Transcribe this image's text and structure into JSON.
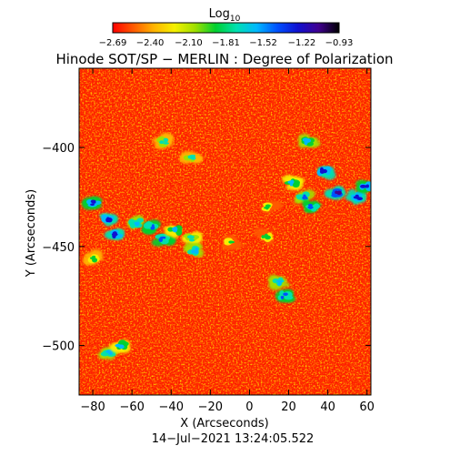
{
  "chart_data": {
    "type": "heatmap",
    "title": "Hinode SOT/SP − MERLIN : Degree of Polarization",
    "subtitle": "14−Jul−2021 13:24:05.522",
    "xlabel": "X (Arcseconds)",
    "ylabel": "Y (Arcseconds)",
    "xlim": [
      -87,
      62
    ],
    "ylim": [
      -525,
      -360
    ],
    "xticks": [
      -80,
      -60,
      -40,
      -20,
      0,
      20,
      40,
      60
    ],
    "yticks": [
      -400,
      -450,
      -500
    ],
    "xtick_labels": [
      "−80",
      "−60",
      "−40",
      "−20",
      "0",
      "20",
      "40",
      "60"
    ],
    "ytick_labels": [
      "−400",
      "−450",
      "−500"
    ],
    "colorbar": {
      "label": "Log",
      "label_subscript": "10",
      "min": -2.69,
      "max": -0.93,
      "tick_values": [
        -2.69,
        -2.4,
        -2.1,
        -1.81,
        -1.52,
        -1.22,
        -0.93
      ],
      "tick_labels": [
        "−2.69",
        "−2.40",
        "−2.10",
        "−1.81",
        "−1.52",
        "−1.22",
        "−0.93"
      ],
      "colors": [
        "#ff0000",
        "#ff5a00",
        "#ffb400",
        "#f5f000",
        "#a0e000",
        "#00d030",
        "#00e0b0",
        "#00b8ff",
        "#0050ff",
        "#1010d0",
        "#400090",
        "#000000"
      ]
    },
    "background_color": "#ff3000",
    "field_description": "predominantly low polarization (red/orange) with scattered clusters of high polarization",
    "high_polarization_regions": [
      {
        "x": -80,
        "y": -428,
        "value": -1.3
      },
      {
        "x": -72,
        "y": -436,
        "value": -1.2
      },
      {
        "x": -68,
        "y": -444,
        "value": -1.25
      },
      {
        "x": -58,
        "y": -438,
        "value": -1.5
      },
      {
        "x": -50,
        "y": -440,
        "value": -1.4
      },
      {
        "x": -44,
        "y": -446,
        "value": -1.35
      },
      {
        "x": -38,
        "y": -442,
        "value": -1.6
      },
      {
        "x": -30,
        "y": -446,
        "value": -1.7
      },
      {
        "x": -28,
        "y": -452,
        "value": -1.5
      },
      {
        "x": -44,
        "y": -397,
        "value": -1.8
      },
      {
        "x": -30,
        "y": -405,
        "value": -1.75
      },
      {
        "x": 22,
        "y": -418,
        "value": -1.6
      },
      {
        "x": 28,
        "y": -425,
        "value": -1.45
      },
      {
        "x": 32,
        "y": -430,
        "value": -1.35
      },
      {
        "x": 30,
        "y": -397,
        "value": -1.55
      },
      {
        "x": 38,
        "y": -412,
        "value": -1.2
      },
      {
        "x": 45,
        "y": -423,
        "value": -1.15
      },
      {
        "x": 55,
        "y": -425,
        "value": -1.2
      },
      {
        "x": 59,
        "y": -420,
        "value": -1.3
      },
      {
        "x": 15,
        "y": -468,
        "value": -1.5
      },
      {
        "x": 18,
        "y": -475,
        "value": -1.4
      },
      {
        "x": 8,
        "y": -445,
        "value": -1.9
      },
      {
        "x": -72,
        "y": -504,
        "value": -1.5
      },
      {
        "x": -66,
        "y": -500,
        "value": -1.6
      },
      {
        "x": -10,
        "y": -448,
        "value": -1.9
      },
      {
        "x": 10,
        "y": -430,
        "value": -1.9
      },
      {
        "x": -80,
        "y": -456,
        "value": -1.85
      }
    ]
  }
}
